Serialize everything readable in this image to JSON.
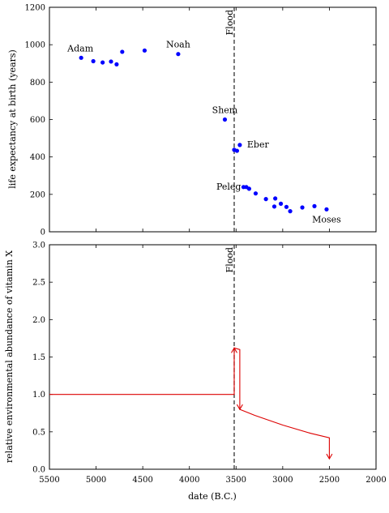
{
  "chart_data": [
    {
      "type": "scatter",
      "ylabel": "life expectancy at birth (years)",
      "xlim": [
        5500,
        2000
      ],
      "ylim": [
        0,
        1200
      ],
      "yticks": [
        "0",
        "200",
        "400",
        "600",
        "800",
        "1000",
        "1200"
      ],
      "series": [
        {
          "color": "#0000ff",
          "points": [
            {
              "x": 5160,
              "y": 930
            },
            {
              "x": 5030,
              "y": 912
            },
            {
              "x": 4930,
              "y": 905
            },
            {
              "x": 4840,
              "y": 910
            },
            {
              "x": 4780,
              "y": 895
            },
            {
              "x": 4720,
              "y": 962
            },
            {
              "x": 4480,
              "y": 969
            },
            {
              "x": 4120,
              "y": 950
            },
            {
              "x": 3620,
              "y": 600
            },
            {
              "x": 3520,
              "y": 438
            },
            {
              "x": 3490,
              "y": 433
            },
            {
              "x": 3460,
              "y": 464
            },
            {
              "x": 3420,
              "y": 239
            },
            {
              "x": 3390,
              "y": 239
            },
            {
              "x": 3360,
              "y": 230
            },
            {
              "x": 3290,
              "y": 205
            },
            {
              "x": 3180,
              "y": 175
            },
            {
              "x": 3090,
              "y": 135
            },
            {
              "x": 3080,
              "y": 178
            },
            {
              "x": 3020,
              "y": 150
            },
            {
              "x": 2960,
              "y": 133
            },
            {
              "x": 2920,
              "y": 110
            },
            {
              "x": 2790,
              "y": 130
            },
            {
              "x": 2660,
              "y": 137
            },
            {
              "x": 2530,
              "y": 120
            }
          ]
        }
      ],
      "annotations": [
        {
          "text": "Adam",
          "x": 5160,
          "y": 930
        },
        {
          "text": "Noah",
          "x": 4120,
          "y": 950
        },
        {
          "text": "Shem",
          "x": 3620,
          "y": 600
        },
        {
          "text": "Eber",
          "x": 3460,
          "y": 464
        },
        {
          "text": "Peleg",
          "x": 3420,
          "y": 239
        },
        {
          "text": "Moses",
          "x": 2530,
          "y": 120
        }
      ],
      "vline": {
        "x": 3520,
        "label": "Flood",
        "style": "dashed"
      }
    },
    {
      "type": "line",
      "xlabel": "date (B.C.)",
      "ylabel": "relative environmental abundance of vitamin X",
      "xlim": [
        5500,
        2000
      ],
      "ylim": [
        0,
        3.0
      ],
      "xticks": [
        "5500",
        "5000",
        "4500",
        "4000",
        "3500",
        "3000",
        "2500",
        "2000"
      ],
      "yticks": [
        "0.0",
        "0.5",
        "1.0",
        "1.5",
        "2.0",
        "2.5",
        "3.0"
      ],
      "series": [
        {
          "color": "#dd0000",
          "points": [
            {
              "x": 5500,
              "y": 1.0
            },
            {
              "x": 3520,
              "y": 1.0
            },
            {
              "x": 3520,
              "y": 1.62
            },
            {
              "x": 3460,
              "y": 1.6
            },
            {
              "x": 3460,
              "y": 0.8
            },
            {
              "x": 3300,
              "y": 0.72
            },
            {
              "x": 3000,
              "y": 0.59
            },
            {
              "x": 2700,
              "y": 0.48
            },
            {
              "x": 2500,
              "y": 0.42
            },
            {
              "x": 2500,
              "y": 0.14
            }
          ]
        }
      ],
      "vline": {
        "x": 3520,
        "label": "Flood",
        "style": "dashed"
      }
    }
  ]
}
